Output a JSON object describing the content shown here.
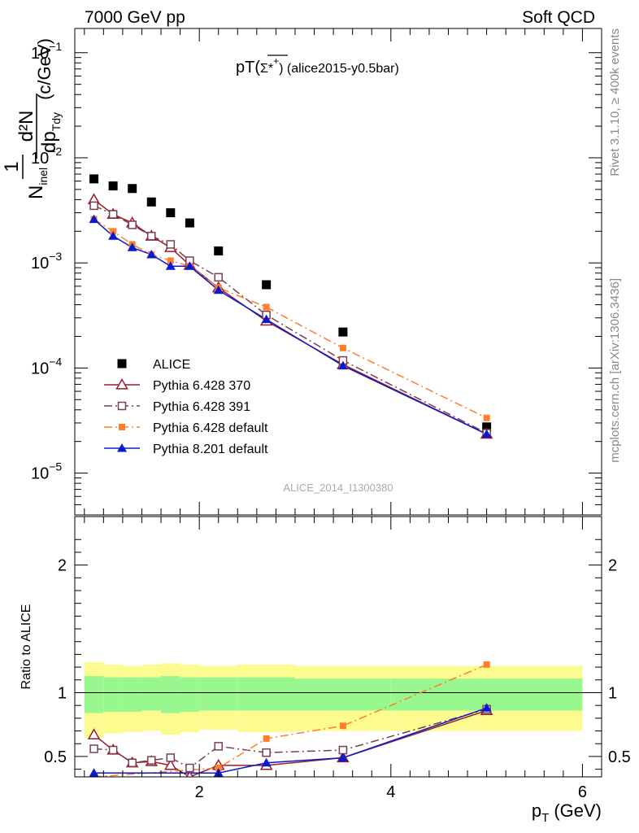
{
  "header": {
    "left": "7000 GeV pp",
    "right": "Soft QCD"
  },
  "side_labels": {
    "rivet": "Rivet 3.1.10, ≥ 400k events",
    "mcplots": "mcplots.cern.ch [arXiv:1306.3436]"
  },
  "chart_data": [
    {
      "type": "scatter",
      "panel": "main",
      "title_main": "pT(",
      "title_particle": "Σ*",
      "title_charge": "+",
      "title_tail": ") (alice2015-y0.5bar)",
      "watermark": "ALICE_2014_I1300380",
      "ylabel": {
        "one": "1",
        "N": "N",
        "inel": "inel",
        "d2N": "d²N",
        "dpTdy": "dp",
        "Tdy": "Tdy",
        "units": "(c/GeV)"
      },
      "xlim": [
        0.7,
        6.2
      ],
      "ylim": [
        4e-06,
        0.17
      ],
      "yscale": "log",
      "y_ticks": [
        {
          "value": 1e-05,
          "base": "10",
          "exp": "−5"
        },
        {
          "value": 0.0001,
          "base": "10",
          "exp": "−4"
        },
        {
          "value": 0.001,
          "base": "10",
          "exp": "−3"
        },
        {
          "value": 0.01,
          "base": "10",
          "exp": "−2"
        },
        {
          "value": 0.1,
          "base": "10",
          "exp": "−1"
        }
      ],
      "legend_position": "lower-left",
      "series": [
        {
          "name": "ALICE",
          "color": "#000000",
          "marker": "square-filled",
          "points": [
            {
              "x": 0.9,
              "y": 0.0063
            },
            {
              "x": 1.1,
              "y": 0.0054
            },
            {
              "x": 1.3,
              "y": 0.0051
            },
            {
              "x": 1.5,
              "y": 0.0038
            },
            {
              "x": 1.7,
              "y": 0.003
            },
            {
              "x": 1.9,
              "y": 0.0024
            },
            {
              "x": 2.2,
              "y": 0.0013
            },
            {
              "x": 2.7,
              "y": 0.00062
            },
            {
              "x": 3.5,
              "y": 0.00022
            },
            {
              "x": 5.0,
              "y": 2.75e-05
            }
          ]
        },
        {
          "name": "Pythia 6.428 370",
          "color": "#9a1b2b",
          "marker": "triangle-open",
          "line": "solid",
          "points": [
            {
              "x": 0.9,
              "y": 0.004
            },
            {
              "x": 1.1,
              "y": 0.0029
            },
            {
              "x": 1.3,
              "y": 0.0024
            },
            {
              "x": 1.5,
              "y": 0.0018
            },
            {
              "x": 1.7,
              "y": 0.0014
            },
            {
              "x": 1.9,
              "y": 0.00095
            },
            {
              "x": 2.2,
              "y": 0.00058
            },
            {
              "x": 2.7,
              "y": 0.00028
            },
            {
              "x": 3.5,
              "y": 0.000108
            },
            {
              "x": 5.0,
              "y": 2.35e-05
            }
          ]
        },
        {
          "name": "Pythia 6.428 391",
          "color": "#7a3e50",
          "marker": "square-open",
          "line": "dashdot",
          "points": [
            {
              "x": 0.9,
              "y": 0.0035
            },
            {
              "x": 1.1,
              "y": 0.0029
            },
            {
              "x": 1.3,
              "y": 0.0023
            },
            {
              "x": 1.5,
              "y": 0.0018
            },
            {
              "x": 1.7,
              "y": 0.0015
            },
            {
              "x": 1.9,
              "y": 0.00105
            },
            {
              "x": 2.2,
              "y": 0.00073
            },
            {
              "x": 2.7,
              "y": 0.00032
            },
            {
              "x": 3.5,
              "y": 0.000118
            },
            {
              "x": 5.0,
              "y": 2.4e-05
            }
          ]
        },
        {
          "name": "Pythia 6.428 default",
          "color": "#ff7f2a",
          "marker": "square-filled-small",
          "line": "dashdot",
          "points": [
            {
              "x": 0.9,
              "y": 0.0026
            },
            {
              "x": 1.1,
              "y": 0.002
            },
            {
              "x": 1.3,
              "y": 0.0015
            },
            {
              "x": 1.5,
              "y": 0.0012
            },
            {
              "x": 1.7,
              "y": 0.00105
            },
            {
              "x": 1.9,
              "y": 0.00093
            },
            {
              "x": 2.2,
              "y": 0.00058
            },
            {
              "x": 2.7,
              "y": 0.00038
            },
            {
              "x": 3.5,
              "y": 0.000155
            },
            {
              "x": 5.0,
              "y": 3.35e-05
            }
          ]
        },
        {
          "name": "Pythia 8.201 default",
          "color": "#0a1acc",
          "marker": "triangle-filled",
          "line": "solid",
          "points": [
            {
              "x": 0.9,
              "y": 0.0026
            },
            {
              "x": 1.1,
              "y": 0.0018
            },
            {
              "x": 1.3,
              "y": 0.0014
            },
            {
              "x": 1.5,
              "y": 0.0012
            },
            {
              "x": 1.7,
              "y": 0.00093
            },
            {
              "x": 1.9,
              "y": 0.00093
            },
            {
              "x": 2.2,
              "y": 0.00055
            },
            {
              "x": 2.7,
              "y": 0.00029
            },
            {
              "x": 3.5,
              "y": 0.000105
            },
            {
              "x": 5.0,
              "y": 2.35e-05
            }
          ]
        }
      ]
    },
    {
      "type": "scatter",
      "panel": "ratio",
      "ylabel": "Ratio to ALICE",
      "xlabel_main": "p",
      "xlabel_sub": "T",
      "xlabel_units": "(GeV)",
      "xlim": [
        0.7,
        6.2
      ],
      "ylim": [
        0.34,
        2.38
      ],
      "x_ticks": [
        {
          "value": 2,
          "label": "2"
        },
        {
          "value": 4,
          "label": "4"
        },
        {
          "value": 6,
          "label": "6"
        }
      ],
      "y_ticks": [
        {
          "value": 0.5,
          "label": "0.5"
        },
        {
          "value": 1,
          "label": "1"
        },
        {
          "value": 2,
          "label": "2"
        }
      ],
      "bands": [
        {
          "x0": 0.8,
          "x1": 1.0,
          "stat_lo": 0.84,
          "stat_hi": 1.13,
          "sys_lo": 0.65,
          "sys_hi": 1.24
        },
        {
          "x0": 1.0,
          "x1": 1.2,
          "stat_lo": 0.85,
          "stat_hi": 1.12,
          "sys_lo": 0.68,
          "sys_hi": 1.22
        },
        {
          "x0": 1.2,
          "x1": 1.4,
          "stat_lo": 0.85,
          "stat_hi": 1.12,
          "sys_lo": 0.69,
          "sys_hi": 1.21
        },
        {
          "x0": 1.4,
          "x1": 1.6,
          "stat_lo": 0.86,
          "stat_hi": 1.12,
          "sys_lo": 0.7,
          "sys_hi": 1.22
        },
        {
          "x0": 1.6,
          "x1": 1.8,
          "stat_lo": 0.84,
          "stat_hi": 1.13,
          "sys_lo": 0.67,
          "sys_hi": 1.23
        },
        {
          "x0": 1.8,
          "x1": 2.0,
          "stat_lo": 0.85,
          "stat_hi": 1.12,
          "sys_lo": 0.69,
          "sys_hi": 1.22
        },
        {
          "x0": 2.0,
          "x1": 2.4,
          "stat_lo": 0.86,
          "stat_hi": 1.12,
          "sys_lo": 0.71,
          "sys_hi": 1.21
        },
        {
          "x0": 2.4,
          "x1": 3.0,
          "stat_lo": 0.86,
          "stat_hi": 1.12,
          "sys_lo": 0.69,
          "sys_hi": 1.22
        },
        {
          "x0": 3.0,
          "x1": 4.0,
          "stat_lo": 0.86,
          "stat_hi": 1.11,
          "sys_lo": 0.7,
          "sys_hi": 1.21
        },
        {
          "x0": 4.0,
          "x1": 6.0,
          "stat_lo": 0.86,
          "stat_hi": 1.11,
          "sys_lo": 0.7,
          "sys_hi": 1.21
        }
      ],
      "band_colors": {
        "stat": "#99f78f",
        "sys": "#fbfb90"
      },
      "series": [
        {
          "name": "Pythia 6.428 370",
          "color": "#9a1b2b",
          "marker": "triangle-open",
          "line": "solid",
          "points": [
            {
              "x": 0.9,
              "y": 0.67
            },
            {
              "x": 1.1,
              "y": 0.55
            },
            {
              "x": 1.3,
              "y": 0.45
            },
            {
              "x": 1.5,
              "y": 0.46
            },
            {
              "x": 1.7,
              "y": 0.43
            },
            {
              "x": 1.9,
              "y": 0.34
            },
            {
              "x": 2.2,
              "y": 0.43
            },
            {
              "x": 2.7,
              "y": 0.43
            },
            {
              "x": 3.5,
              "y": 0.49
            },
            {
              "x": 5.0,
              "y": 0.86
            }
          ]
        },
        {
          "name": "Pythia 6.428 391",
          "color": "#7a3e50",
          "marker": "square-open",
          "line": "dashdot",
          "points": [
            {
              "x": 0.9,
              "y": 0.56
            },
            {
              "x": 1.1,
              "y": 0.55
            },
            {
              "x": 1.3,
              "y": 0.45
            },
            {
              "x": 1.5,
              "y": 0.47
            },
            {
              "x": 1.7,
              "y": 0.49
            },
            {
              "x": 1.9,
              "y": 0.41
            },
            {
              "x": 2.2,
              "y": 0.58
            },
            {
              "x": 2.7,
              "y": 0.53
            },
            {
              "x": 3.5,
              "y": 0.55
            },
            {
              "x": 5.0,
              "y": 0.87
            }
          ]
        },
        {
          "name": "Pythia 6.428 default",
          "color": "#ff7f2a",
          "marker": "square-filled-small",
          "line": "dashdot",
          "points": [
            {
              "x": 0.9,
              "y": 0.34
            },
            {
              "x": 2.2,
              "y": 0.41
            },
            {
              "x": 2.7,
              "y": 0.64
            },
            {
              "x": 3.5,
              "y": 0.74
            },
            {
              "x": 5.0,
              "y": 1.22
            }
          ]
        },
        {
          "name": "Pythia 8.201 default",
          "color": "#0a1acc",
          "marker": "triangle-filled",
          "line": "solid",
          "points": [
            {
              "x": 0.9,
              "y": 0.37
            },
            {
              "x": 2.2,
              "y": 0.37
            },
            {
              "x": 2.7,
              "y": 0.45
            },
            {
              "x": 3.5,
              "y": 0.49
            },
            {
              "x": 5.0,
              "y": 0.88
            }
          ]
        }
      ]
    }
  ]
}
